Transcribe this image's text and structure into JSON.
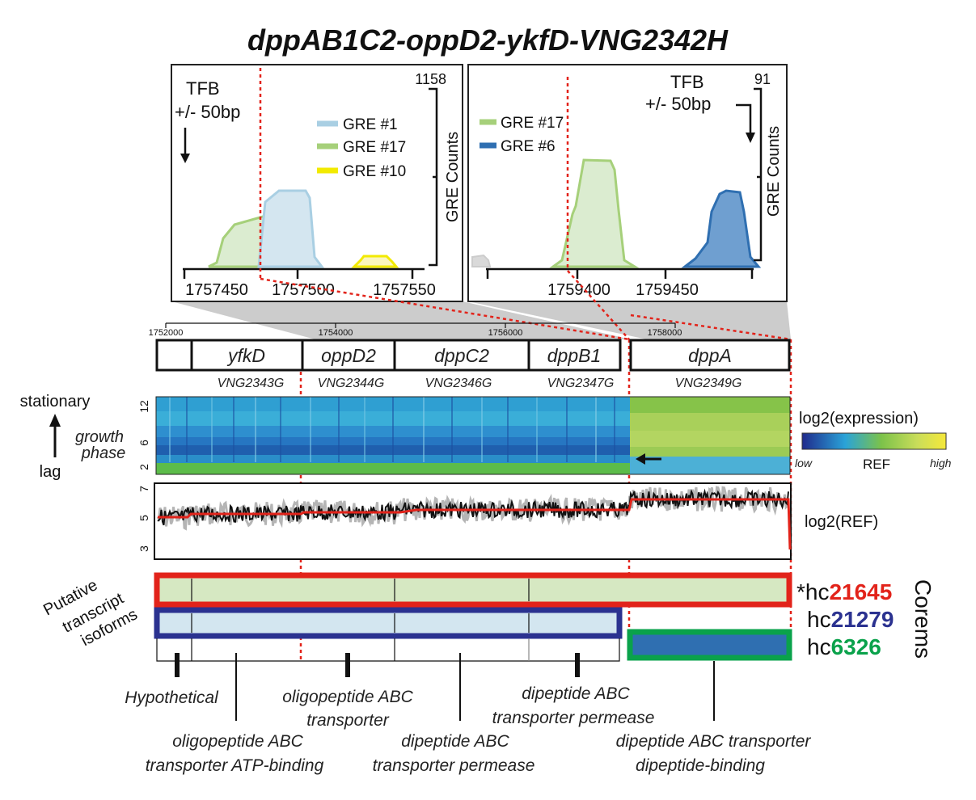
{
  "title": "dppAB1C2-oppD2-ykfD-VNG2342H",
  "colors": {
    "red": "#e2231a",
    "navy": "#2b3290",
    "green": "#0aa24b",
    "gre1": "#a9cfe3",
    "gre17": "#a6d07a",
    "gre10": "#f2ea00",
    "gre6": "#2f6fb1",
    "lightgreen": "#d6e8c2",
    "lightblue": "#d3e6f0"
  },
  "left_panel": {
    "tfb_label": "TFB",
    "tfb_window": "+/- 50bp",
    "ymax": "1158",
    "ylabel": "GRE Counts",
    "legend": [
      "GRE #1",
      "GRE #17",
      "GRE #10"
    ],
    "ticks": [
      "1757450",
      "1757500",
      "1757550"
    ]
  },
  "right_panel": {
    "tfb_label": "TFB",
    "tfb_window": "+/- 50bp",
    "ymax": "91",
    "ylabel": "GRE Counts",
    "legend": [
      "GRE #17",
      "GRE #6"
    ],
    "ticks": [
      "1759400",
      "1759450"
    ]
  },
  "coord_ticks": [
    "1752000",
    "1754000",
    "1756000",
    "1758000"
  ],
  "genes": [
    {
      "name": "",
      "locus": ""
    },
    {
      "name": "yfkD",
      "locus": "VNG2343G"
    },
    {
      "name": "oppD2",
      "locus": "VNG2344G"
    },
    {
      "name": "dppC2",
      "locus": "VNG2346G"
    },
    {
      "name": "dppB1",
      "locus": "VNG2347G"
    },
    {
      "name": "dppA",
      "locus": "VNG2349G"
    }
  ],
  "heatmap": {
    "y_axis_top": "stationary",
    "y_axis_bottom": "lag",
    "y_axis_label_1": "growth",
    "y_axis_label_2": "phase",
    "y_ticks": [
      "12",
      "6",
      "2"
    ],
    "legend_title": "log2(expression)",
    "legend_low": "low",
    "legend_mid": "REF",
    "legend_high": "high"
  },
  "ref_track": {
    "label": "log2(REF)",
    "y_ticks": [
      "7",
      "5",
      "3"
    ]
  },
  "isoforms": {
    "label_1": "Putative",
    "label_2": "transcript",
    "label_3": "isoforms",
    "corems_label": "Corems",
    "corems": [
      {
        "prefix": "*hc",
        "id": "21645",
        "color": "#e2231a"
      },
      {
        "prefix": "hc",
        "id": "21279",
        "color": "#2b3290"
      },
      {
        "prefix": "hc",
        "id": "6326",
        "color": "#0aa24b"
      }
    ]
  },
  "annotations": [
    {
      "line1": "Hypothetical",
      "line2": ""
    },
    {
      "line1": "oligopeptide ABC",
      "line2": "transporter ATP-binding"
    },
    {
      "line1": "oligopeptide ABC",
      "line2": "transporter"
    },
    {
      "line1": "dipeptide ABC",
      "line2": "transporter permease"
    },
    {
      "line1": "dipeptide ABC",
      "line2": "transporter permease"
    },
    {
      "line1": "dipeptide ABC transporter",
      "line2": "dipeptide-binding"
    }
  ]
}
